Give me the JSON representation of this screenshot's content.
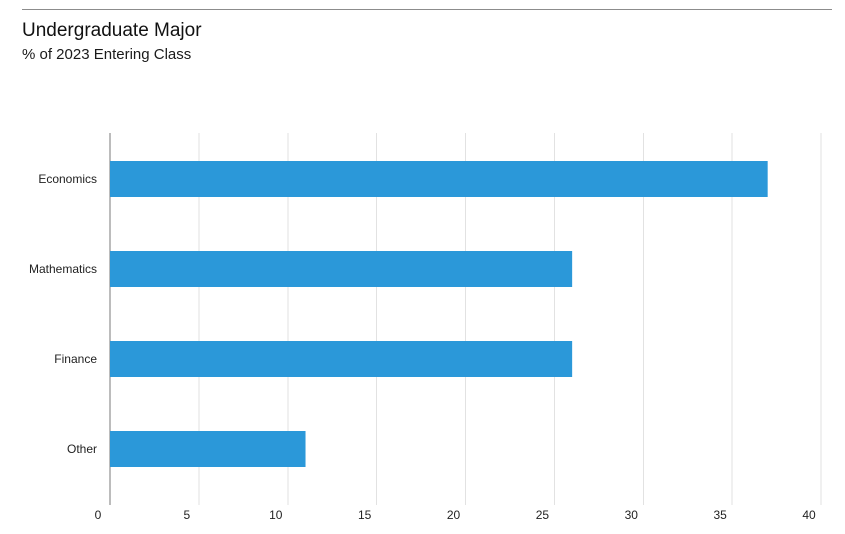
{
  "chart_data": {
    "type": "bar",
    "orientation": "horizontal",
    "title": "Undergraduate Major",
    "subtitle": "% of 2023 Entering Class",
    "categories": [
      "Economics",
      "Mathematics",
      "Finance",
      "Other"
    ],
    "values": [
      37,
      26,
      26,
      11
    ],
    "xlim": [
      0,
      40
    ],
    "xticks": [
      0,
      5,
      10,
      15,
      20,
      25,
      30,
      35,
      40
    ],
    "grid": true,
    "bar_color": "#2b98d9"
  }
}
